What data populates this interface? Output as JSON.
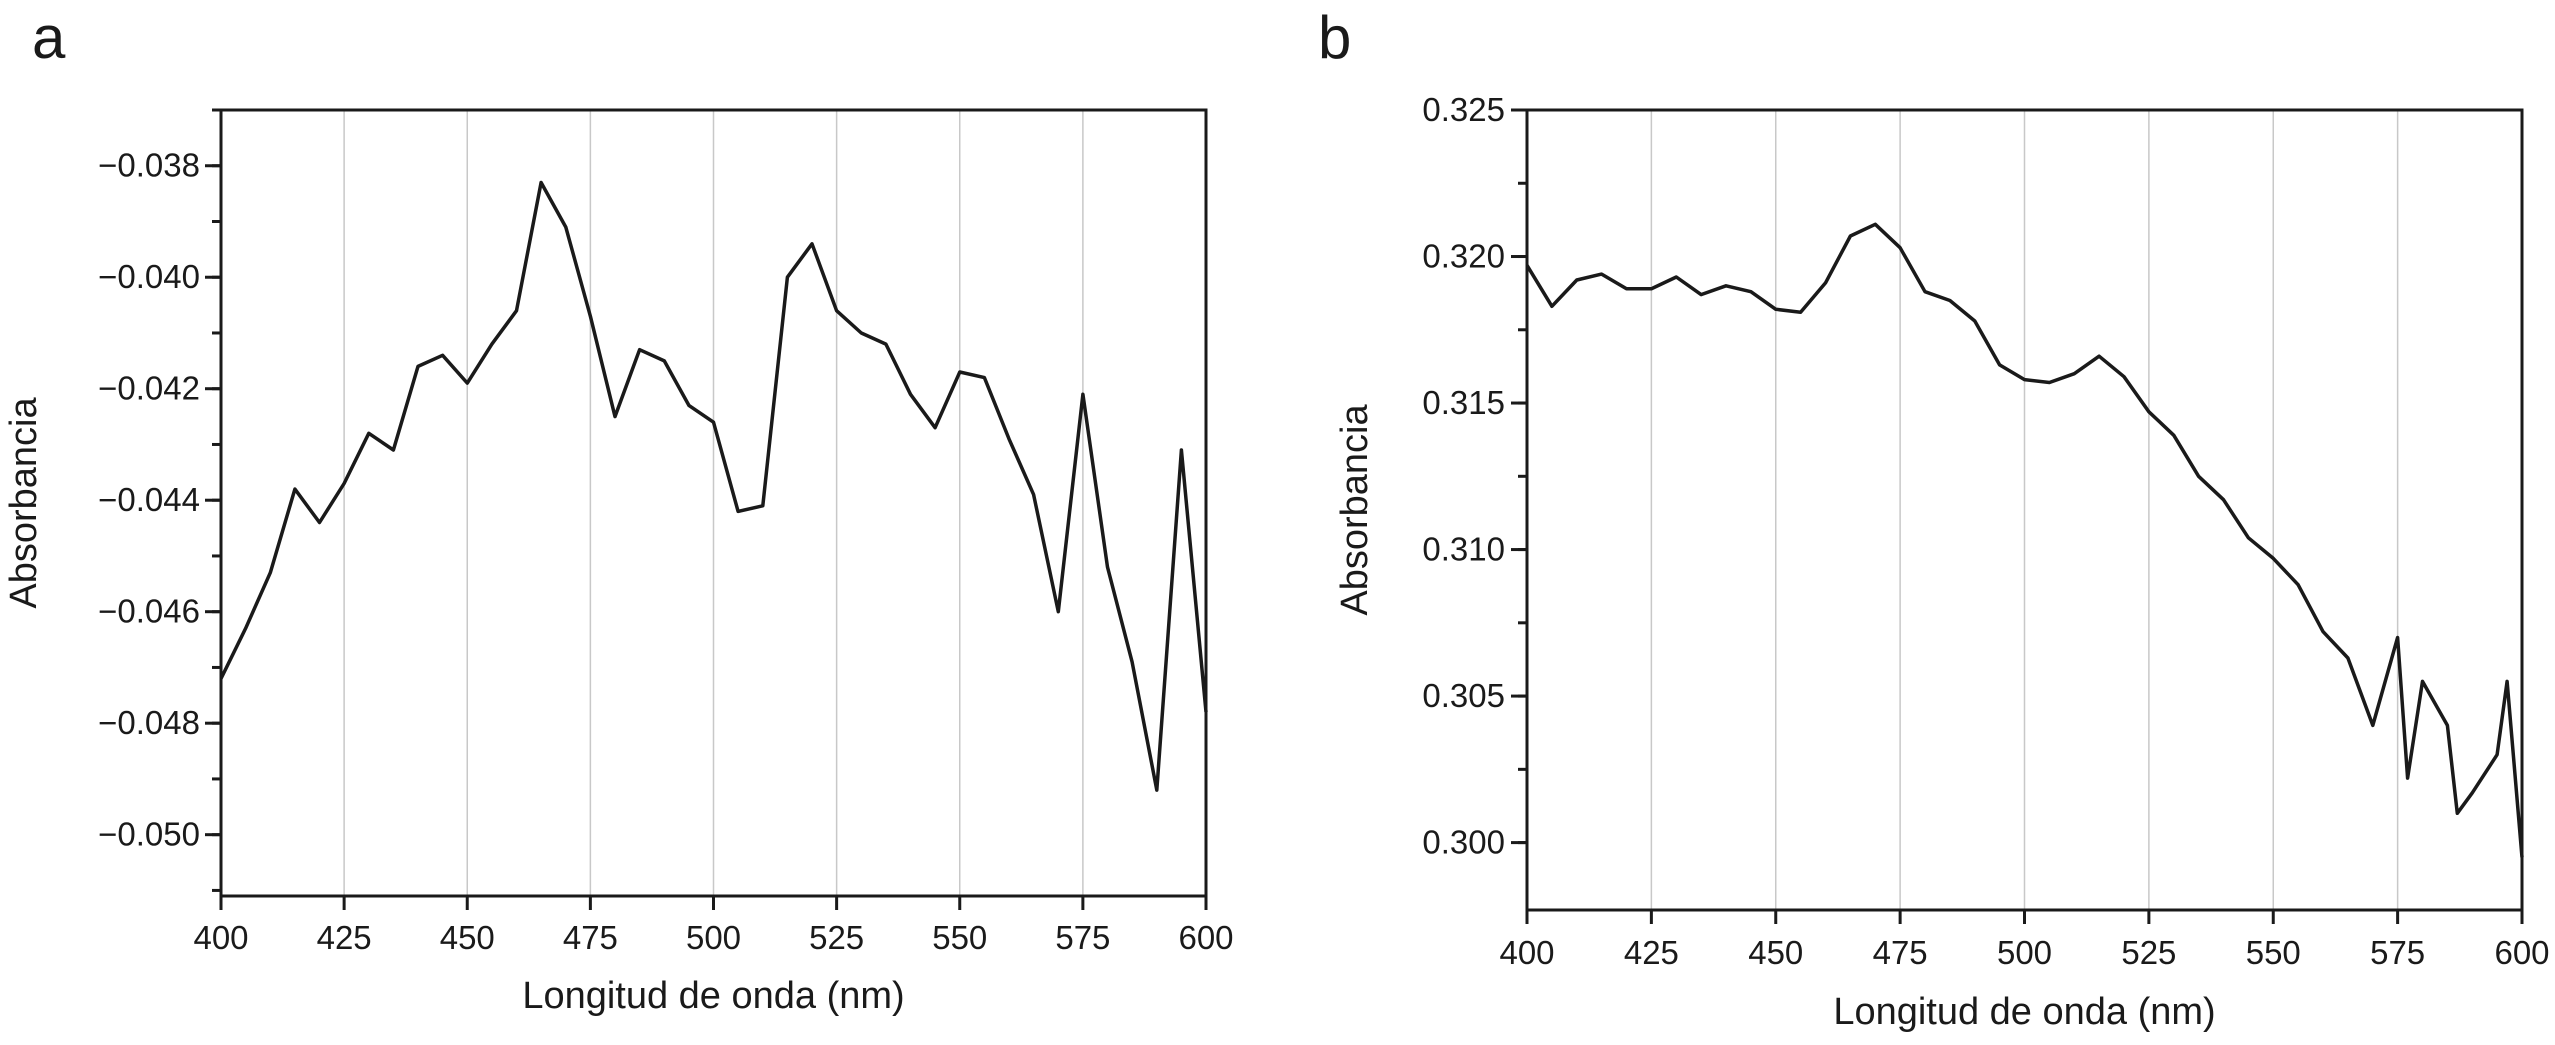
{
  "chart_data": [
    {
      "panel": "a",
      "type": "line",
      "xlabel": "Longitud de onda (nm)",
      "ylabel": "Absorbancia",
      "xlim": [
        400,
        600
      ],
      "ylim": [
        -0.0511,
        -0.037
      ],
      "xticks": [
        400,
        425,
        450,
        475,
        500,
        525,
        550,
        575,
        600
      ],
      "yticks": [
        -0.038,
        -0.04,
        -0.042,
        -0.044,
        -0.046,
        -0.048,
        -0.05
      ],
      "ytick_labels": [
        "−0.038",
        "−0.040",
        "−0.042",
        "−0.044",
        "−0.046",
        "−0.048",
        "−0.050"
      ],
      "y_minor_step": 0.001,
      "grid": "vertical",
      "x": [
        400,
        405,
        410,
        415,
        420,
        425,
        430,
        435,
        440,
        445,
        450,
        455,
        460,
        465,
        470,
        475,
        480,
        485,
        490,
        495,
        500,
        505,
        510,
        515,
        520,
        525,
        530,
        535,
        540,
        545,
        550,
        555,
        560,
        565,
        570,
        575,
        580,
        585,
        590,
        595,
        600
      ],
      "y": [
        -0.0472,
        -0.0463,
        -0.0453,
        -0.0438,
        -0.0444,
        -0.0437,
        -0.0428,
        -0.0431,
        -0.0416,
        -0.0414,
        -0.0419,
        -0.0412,
        -0.0406,
        -0.0383,
        -0.0391,
        -0.0407,
        -0.0425,
        -0.0413,
        -0.0415,
        -0.0423,
        -0.0426,
        -0.0442,
        -0.0441,
        -0.04,
        -0.0394,
        -0.0406,
        -0.041,
        -0.0412,
        -0.0421,
        -0.0427,
        -0.0417,
        -0.0418,
        -0.0429,
        -0.0439,
        -0.046,
        -0.0421,
        -0.0452,
        -0.0469,
        -0.0492,
        -0.0431,
        -0.0478
      ]
    },
    {
      "panel": "b",
      "type": "line",
      "xlabel": "Longitud de onda (nm)",
      "ylabel": "Absorbancia",
      "xlim": [
        400,
        600
      ],
      "ylim": [
        0.2977,
        0.325
      ],
      "xticks": [
        400,
        425,
        450,
        475,
        500,
        525,
        550,
        575,
        600
      ],
      "yticks": [
        0.3,
        0.305,
        0.31,
        0.315,
        0.32,
        0.325
      ],
      "ytick_labels": [
        "0.300",
        "0.305",
        "0.310",
        "0.315",
        "0.320",
        "0.325"
      ],
      "y_minor_step": 0.0025,
      "grid": "vertical",
      "x": [
        400,
        405,
        410,
        415,
        420,
        425,
        430,
        435,
        440,
        445,
        450,
        455,
        460,
        465,
        470,
        475,
        480,
        485,
        490,
        495,
        500,
        505,
        510,
        515,
        520,
        525,
        530,
        535,
        540,
        545,
        550,
        555,
        560,
        565,
        570,
        575,
        577,
        580,
        585,
        587,
        590,
        595,
        597,
        600
      ],
      "y": [
        0.3197,
        0.3183,
        0.3192,
        0.3194,
        0.3189,
        0.3189,
        0.3193,
        0.3187,
        0.319,
        0.3188,
        0.3182,
        0.3181,
        0.3191,
        0.3207,
        0.3211,
        0.3203,
        0.3188,
        0.3185,
        0.3178,
        0.3163,
        0.3158,
        0.3157,
        0.316,
        0.3166,
        0.3159,
        0.3147,
        0.3139,
        0.3125,
        0.3117,
        0.3104,
        0.3097,
        0.3088,
        0.3072,
        0.3063,
        0.304,
        0.307,
        0.3022,
        0.3055,
        0.304,
        0.301,
        0.3017,
        0.303,
        0.3055,
        0.2995
      ]
    }
  ]
}
